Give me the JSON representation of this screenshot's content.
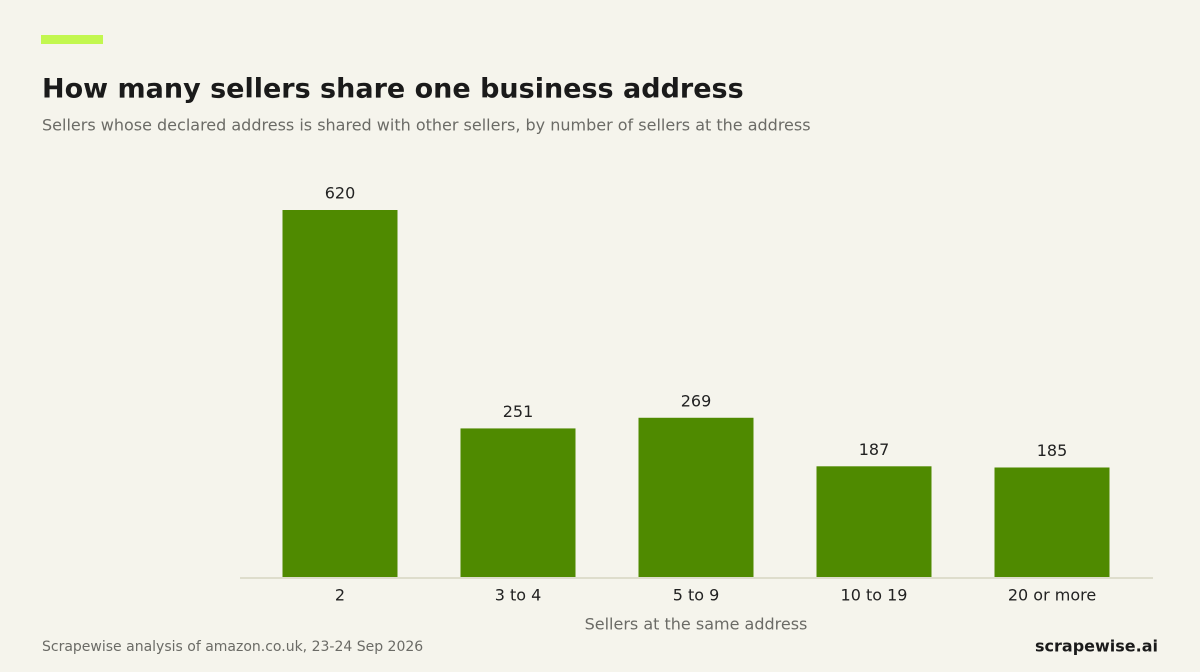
{
  "chart_data": {
    "type": "bar",
    "title": "How many sellers share one business address",
    "subtitle": "Sellers whose declared address is shared with other sellers, by number of sellers at the address",
    "x_label": "Sellers at the same address",
    "categories": [
      "2",
      "3 to 4",
      "5 to 9",
      "10 to 19",
      "20 or more"
    ],
    "values": [
      620,
      251,
      269,
      187,
      185
    ],
    "color": "#4f8a00",
    "source": "Scrapewise analysis of amazon.co.uk, 23-24 Sep 2026",
    "brand": "scrapewise.ai"
  }
}
